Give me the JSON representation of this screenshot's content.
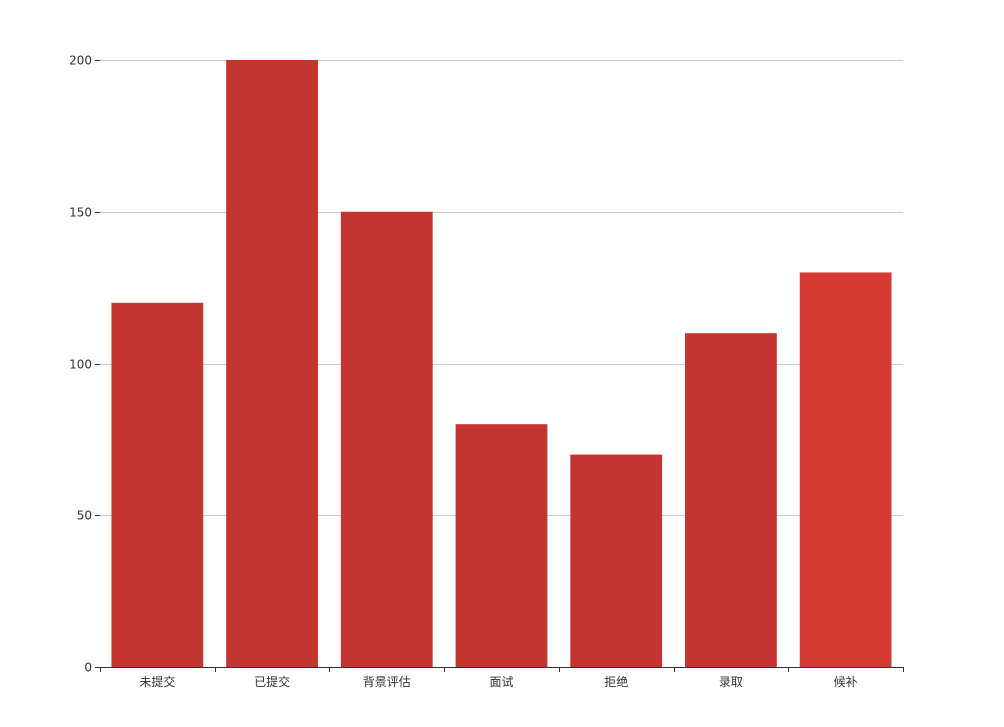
{
  "chart_data": {
    "type": "bar",
    "categories": [
      "未提交",
      "已提交",
      "背景评估",
      "面试",
      "拒绝",
      "录取",
      "候补"
    ],
    "values": [
      120,
      200,
      150,
      80,
      70,
      110,
      130
    ],
    "ylim": [
      0,
      200
    ],
    "yticks": [
      0,
      50,
      100,
      150,
      200
    ],
    "grid": true,
    "legend": "none",
    "colors": {
      "bar": "#c23531",
      "bar_highlight": "#d63a34",
      "grid": "#cccccc",
      "axis": "#333333",
      "text": "#333333"
    },
    "highlighted_index": 6
  }
}
